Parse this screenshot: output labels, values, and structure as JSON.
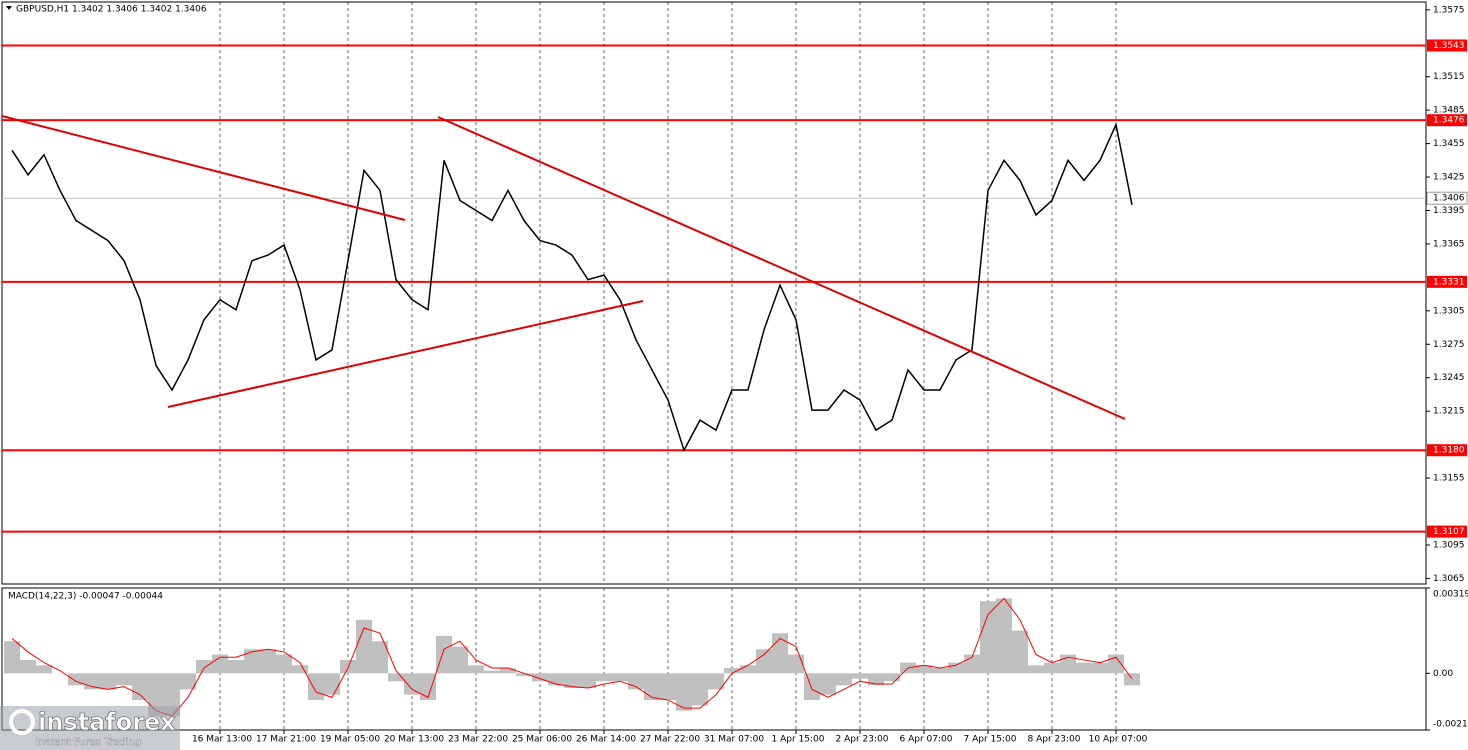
{
  "chart_data": [
    {
      "type": "line",
      "title": "GBPUSD,H1  1.3402 1.3406 1.3402 1.3406",
      "color": "#000000",
      "categories": [
        null,
        null,
        null,
        null,
        null,
        null,
        null,
        null,
        null,
        null,
        null,
        null,
        null,
        "16 Mar 13:00",
        null,
        null,
        null,
        "17 Mar 21:00",
        null,
        null,
        null,
        "19 Mar 05:00",
        null,
        null,
        null,
        "20 Mar 13:00",
        null,
        null,
        null,
        "23 Mar 22:00",
        null,
        null,
        null,
        "25 Mar 06:00",
        null,
        null,
        null,
        "26 Mar 14:00",
        null,
        null,
        null,
        "27 Mar 22:00",
        null,
        null,
        null,
        "31 Mar 07:00",
        null,
        null,
        null,
        "1 Apr 15:00",
        null,
        null,
        null,
        "2 Apr 23:00",
        null,
        null,
        null,
        "6 Apr 07:00",
        null,
        null,
        null,
        "7 Apr 15:00",
        null,
        null,
        null,
        "8 Apr 23:00",
        null,
        null,
        null,
        "10 Apr 07:00",
        null
      ],
      "values": [
        1.3449,
        1.3427,
        1.3445,
        1.3413,
        1.3386,
        1.3377,
        1.3368,
        1.335,
        1.3315,
        1.3256,
        1.3234,
        1.3261,
        1.3297,
        1.3315,
        1.3306,
        1.335,
        1.3355,
        1.3364,
        1.3324,
        1.3261,
        1.327,
        1.335,
        1.3431,
        1.3413,
        1.3333,
        1.3315,
        1.3306,
        1.344,
        1.3404,
        1.3395,
        1.3386,
        1.3413,
        1.3386,
        1.3368,
        1.3364,
        1.3355,
        1.3333,
        1.3337,
        1.3315,
        1.3279,
        1.3252,
        1.3225,
        1.318,
        1.3207,
        1.3198,
        1.3234,
        1.3234,
        1.3288,
        1.3328,
        1.3297,
        1.3216,
        1.3216,
        1.3234,
        1.3225,
        1.3198,
        1.3207,
        1.3252,
        1.3234,
        1.3234,
        1.3261,
        1.327,
        1.3413,
        1.344,
        1.3422,
        1.3391,
        1.3404,
        1.344,
        1.3422,
        1.344,
        1.3472,
        1.34
      ],
      "levels": [
        1.3543,
        1.3476,
        1.3331,
        {
          "value": 1.318,
          "label": "1.3180"
        },
        1.3107
      ],
      "level_color": "#ff0000",
      "last_price": 1.3406,
      "ylim": [
        1.306,
        1.3582
      ],
      "yticks": [
        1.3575,
        1.3515,
        1.3485,
        1.3455,
        1.3425,
        1.3395,
        1.3365,
        1.3305,
        1.3275,
        1.3245,
        1.3215,
        1.3155,
        1.3095,
        1.3065
      ],
      "grid": true
    },
    {
      "type": "macd",
      "title": "MACD(14,22,3) -0.00047 -0.00044",
      "series": [
        {
          "color": "#c0c0c0",
          "values": [
            0.0012,
            0.0005,
            0.0003,
            0.0,
            -0.00045,
            -0.0006,
            -0.0006,
            -0.00045,
            -0.001,
            -0.0016,
            -0.0016,
            -0.0006,
            0.0005,
            0.0007,
            0.0005,
            0.0009,
            0.0009,
            0.0007,
            0.0003,
            -0.001,
            -0.0008,
            0.0005,
            0.002,
            0.0012,
            -0.0003,
            -0.0008,
            -0.001,
            0.0014,
            0.001,
            0.0003,
            0.0001,
            0.0002,
            -0.0001,
            -0.0003,
            -0.00045,
            -0.00055,
            -0.00055,
            -0.0003,
            -0.0003,
            -0.0006,
            -0.001,
            -0.001,
            -0.0014,
            -0.0012,
            -0.0006,
            0.0002,
            0.0003,
            0.0009,
            0.0015,
            0.0007,
            -0.001,
            -0.0008,
            -0.00045,
            -0.0002,
            -0.00045,
            -0.0003,
            0.0004,
            0.0003,
            0.0002,
            0.0004,
            0.0007,
            0.0027,
            0.0028,
            0.0016,
            0.0003,
            0.0004,
            0.0007,
            0.0004,
            0.0004,
            0.0007,
            -0.00045
          ]
        },
        {
          "color": "#ff0000",
          "values": [
            0.0013,
            0.0008,
            0.0004,
            0.0001,
            -0.0003,
            -0.0005,
            -0.0006,
            -0.0005,
            -0.0008,
            -0.0014,
            -0.0016,
            -0.0009,
            0.0002,
            0.0006,
            0.0006,
            0.0008,
            0.0009,
            0.0008,
            0.0004,
            -0.0007,
            -0.0009,
            0.0002,
            0.0017,
            0.0015,
            0.0001,
            -0.0006,
            -0.0009,
            0.0009,
            0.0012,
            0.0005,
            0.0002,
            0.0002,
            0.0,
            -0.0002,
            -0.0004,
            -0.0005,
            -0.00055,
            -0.0004,
            -0.0003,
            -0.0005,
            -0.0009,
            -0.001,
            -0.0013,
            -0.0013,
            -0.0008,
            0.0,
            0.0003,
            0.0007,
            0.0013,
            0.001,
            -0.0006,
            -0.0009,
            -0.0006,
            -0.0003,
            -0.0004,
            -0.0004,
            0.0002,
            0.0003,
            0.0002,
            0.0003,
            0.0006,
            0.0022,
            0.0028,
            0.002,
            0.0007,
            0.0004,
            0.0006,
            0.0005,
            0.0004,
            0.0006,
            -0.0002
          ]
        }
      ],
      "ylim": [
        -0.00212,
        0.00319
      ],
      "yticks": [
        0.00319,
        {
          "value": 0,
          "label": "0.00"
        },
        -0.00212
      ]
    }
  ],
  "watermark": {
    "brand": "instaforex",
    "tagline": "Instant Forex Trading"
  }
}
